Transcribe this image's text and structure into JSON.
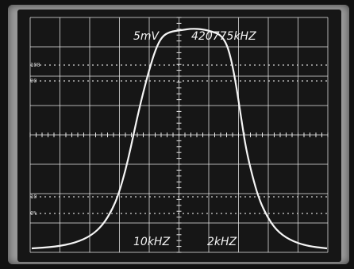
{
  "scope": {
    "top_left_label": "5mV",
    "top_right_label": "420775kHZ",
    "bottom_left_label": "10kHZ",
    "bottom_right_label": "2kHZ",
    "left_marks": [
      "100",
      "90",
      "10",
      "0%"
    ]
  },
  "colors": {
    "trace": "#f5f5f5",
    "grid": "#e8e8e8",
    "screen": "#161616",
    "bezel": "#9a9a9a"
  }
}
